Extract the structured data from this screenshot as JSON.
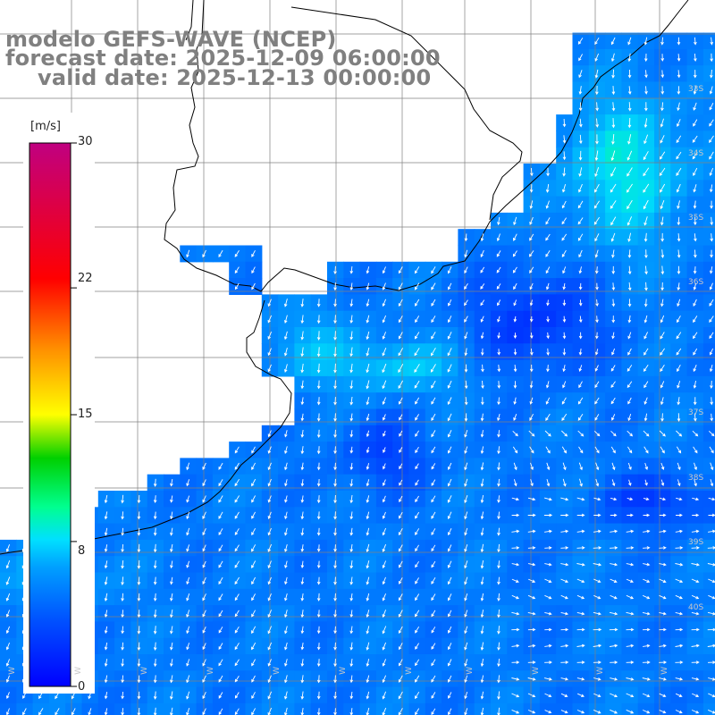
{
  "titles": {
    "model": "modelo GEFS-WAVE (NCEP)",
    "forecast": "forecast date: 2025-12-09 06:00:00",
    "valid": "valid date: 2025-12-13 00:00:00"
  },
  "colorbar": {
    "unit": "[m/s]",
    "min": 0,
    "max": 30,
    "ticks": [
      "30",
      "22",
      "15",
      "8",
      "0"
    ],
    "tick_values": [
      30,
      22,
      15,
      8,
      0
    ],
    "colors": [
      "#0000ff",
      "#0080ff",
      "#00e0ff",
      "#00ff80",
      "#00c000",
      "#ffff00",
      "#ff8000",
      "#ff0000",
      "#c00080"
    ]
  },
  "lat_labels": [
    "33S",
    "34S",
    "35S",
    "36S",
    "37S",
    "38S",
    "39S",
    "40S"
  ],
  "lon_labels": [
    "W",
    "W",
    "W",
    "W",
    "W",
    "W",
    "W",
    "W",
    "W",
    "W",
    "W"
  ],
  "field": {
    "variable": "wind speed",
    "units": "m/s",
    "arrow_color": "#ffffff",
    "land_color": "#ffffff",
    "coast_color": "#000000",
    "grid_color": "#808080"
  }
}
